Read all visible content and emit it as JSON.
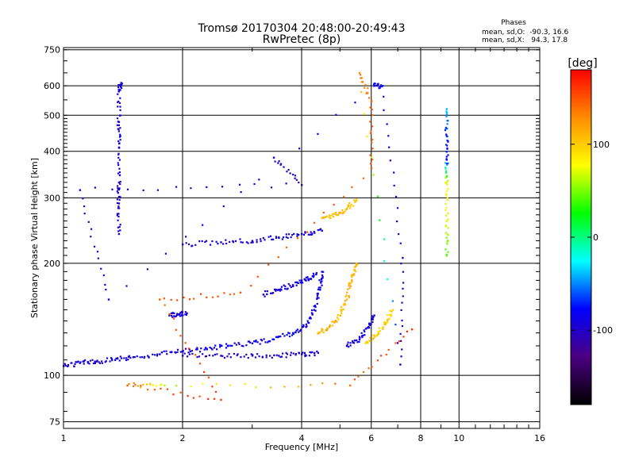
{
  "chart_data": {
    "type": "scatter",
    "title": "Tromsø 20170304 20:48:00-20:49:43",
    "subtitle": "RwPretec (8p)",
    "xlabel": "Frequency [MHz]",
    "ylabel": "Stationary phase Virtual Height [km]",
    "x_scale": "log",
    "y_scale": "log",
    "xlim": [
      1,
      16
    ],
    "ylim": [
      72,
      760
    ],
    "x_ticks": [
      1,
      2,
      4,
      6,
      8,
      10,
      16
    ],
    "x_tick_labels": [
      "1",
      "2",
      "4",
      "6",
      "8",
      "10",
      "16"
    ],
    "y_ticks": [
      75,
      100,
      200,
      300,
      400,
      500,
      600,
      750
    ],
    "y_tick_labels": [
      "75",
      "100",
      "200",
      "300",
      "400",
      "500",
      "600",
      "750"
    ],
    "grid": true,
    "legend_position": "top-right",
    "phase_header": "Phases",
    "phase_stats": [
      "mean, sd,O:  -90.3, 16.6",
      "mean, sd,X:   94.3, 17.8"
    ],
    "colorbar": {
      "label": "[deg]",
      "range": [
        -180,
        180
      ],
      "ticks": [
        -100,
        0,
        100
      ],
      "tick_labels": [
        "-100",
        "0",
        "100"
      ],
      "colormap": "rainbow (black → purple → blue → cyan → green → yellow → orange → red)",
      "colors": [
        "#000000",
        "#4b0082",
        "#0000ff",
        "#00ffff",
        "#00ff00",
        "#ffff00",
        "#ff8c00",
        "#ff0000"
      ]
    },
    "series": [
      {
        "points": [
          {
            "x": 1.0,
            "y": 106,
            "c": -95
          },
          {
            "x": 1.1,
            "y": 108,
            "c": -92
          },
          {
            "x": 1.2,
            "y": 109,
            "c": -95
          },
          {
            "x": 1.35,
            "y": 110,
            "c": -90
          },
          {
            "x": 1.5,
            "y": 112,
            "c": -88
          },
          {
            "x": 1.75,
            "y": 114,
            "c": -92
          },
          {
            "x": 2.0,
            "y": 116,
            "c": -90
          },
          {
            "x": 2.3,
            "y": 118,
            "c": -88
          },
          {
            "x": 2.6,
            "y": 120,
            "c": -86
          },
          {
            "x": 3.0,
            "y": 122,
            "c": -90
          },
          {
            "x": 3.4,
            "y": 125,
            "c": -85
          },
          {
            "x": 3.8,
            "y": 130,
            "c": -80
          },
          {
            "x": 4.1,
            "y": 135,
            "c": -85
          },
          {
            "x": 4.3,
            "y": 150,
            "c": -88
          },
          {
            "x": 4.45,
            "y": 170,
            "c": -85
          },
          {
            "x": 4.5,
            "y": 190,
            "c": -90
          }
        ]
      },
      {
        "points": [
          {
            "x": 2.0,
            "y": 113,
            "c": -100
          },
          {
            "x": 2.5,
            "y": 113,
            "c": -100
          },
          {
            "x": 3.0,
            "y": 113,
            "c": -100
          },
          {
            "x": 3.5,
            "y": 113,
            "c": -98
          },
          {
            "x": 4.0,
            "y": 114,
            "c": -95
          },
          {
            "x": 4.4,
            "y": 115,
            "c": -95
          }
        ]
      },
      {
        "points": [
          {
            "x": 1.85,
            "y": 145,
            "c": -95
          },
          {
            "x": 1.95,
            "y": 146,
            "c": -92
          },
          {
            "x": 2.05,
            "y": 147,
            "c": -95
          }
        ]
      },
      {
        "points": [
          {
            "x": 3.2,
            "y": 165,
            "c": -90
          },
          {
            "x": 3.5,
            "y": 170,
            "c": -92
          },
          {
            "x": 3.8,
            "y": 175,
            "c": -90
          },
          {
            "x": 4.1,
            "y": 180,
            "c": -88
          },
          {
            "x": 4.35,
            "y": 187,
            "c": -85
          }
        ]
      },
      {
        "points": [
          {
            "x": 4.4,
            "y": 130,
            "c": 110
          },
          {
            "x": 4.7,
            "y": 135,
            "c": 115
          },
          {
            "x": 5.0,
            "y": 145,
            "c": 105
          },
          {
            "x": 5.2,
            "y": 160,
            "c": 110
          },
          {
            "x": 5.35,
            "y": 180,
            "c": 112
          },
          {
            "x": 5.5,
            "y": 200,
            "c": 108
          }
        ]
      },
      {
        "points": [
          {
            "x": 5.2,
            "y": 120,
            "c": -90
          },
          {
            "x": 5.6,
            "y": 125,
            "c": -92
          },
          {
            "x": 5.9,
            "y": 135,
            "c": -88
          },
          {
            "x": 6.1,
            "y": 145,
            "c": -90
          }
        ]
      },
      {
        "points": [
          {
            "x": 5.8,
            "y": 122,
            "c": 95
          },
          {
            "x": 6.2,
            "y": 128,
            "c": 100
          },
          {
            "x": 6.5,
            "y": 138,
            "c": 98
          },
          {
            "x": 6.8,
            "y": 150,
            "c": 95
          }
        ]
      },
      {
        "points": [
          {
            "x": 2.0,
            "y": 225,
            "c": -95
          },
          {
            "x": 2.5,
            "y": 228,
            "c": -92
          },
          {
            "x": 3.0,
            "y": 230,
            "c": -94
          },
          {
            "x": 3.5,
            "y": 235,
            "c": -90
          },
          {
            "x": 4.0,
            "y": 240,
            "c": -92
          },
          {
            "x": 4.5,
            "y": 245,
            "c": -90
          }
        ]
      },
      {
        "points": [
          {
            "x": 4.5,
            "y": 265,
            "c": 105
          },
          {
            "x": 4.9,
            "y": 270,
            "c": 110
          },
          {
            "x": 5.2,
            "y": 280,
            "c": 108
          },
          {
            "x": 5.5,
            "y": 295,
            "c": 105
          }
        ]
      },
      {
        "points": [
          {
            "x": 1.38,
            "y": 240,
            "c": -95
          },
          {
            "x": 1.38,
            "y": 290,
            "c": -92
          },
          {
            "x": 1.38,
            "y": 330,
            "c": -95
          },
          {
            "x": 1.38,
            "y": 410,
            "c": -90
          },
          {
            "x": 1.38,
            "y": 480,
            "c": -92
          },
          {
            "x": 1.38,
            "y": 580,
            "c": -95
          },
          {
            "x": 1.4,
            "y": 610,
            "c": -93
          }
        ]
      },
      {
        "points": [
          {
            "x": 9.3,
            "y": 210,
            "c": 40
          },
          {
            "x": 9.3,
            "y": 260,
            "c": 70
          },
          {
            "x": 9.3,
            "y": 330,
            "c": 90
          },
          {
            "x": 9.3,
            "y": 380,
            "c": -80
          },
          {
            "x": 9.3,
            "y": 440,
            "c": -70
          },
          {
            "x": 9.3,
            "y": 520,
            "c": -40
          }
        ]
      },
      {
        "points": [
          {
            "x": 3.4,
            "y": 385,
            "c": -95
          },
          {
            "x": 4.0,
            "y": 325,
            "c": -100
          },
          {
            "x": 1.1,
            "y": 315,
            "c": -95
          },
          {
            "x": 1.3,
            "y": 160,
            "c": -95
          },
          {
            "x": 6.1,
            "y": 600,
            "c": -90
          },
          {
            "x": 6.4,
            "y": 600,
            "c": -80
          },
          {
            "x": 7.2,
            "y": 207,
            "c": -95
          },
          {
            "x": 7.1,
            "y": 107,
            "c": -95
          },
          {
            "x": 5.6,
            "y": 650,
            "c": 130
          },
          {
            "x": 6.0,
            "y": 545,
            "c": 140
          },
          {
            "x": 6.0,
            "y": 360,
            "c": 145
          },
          {
            "x": 2.8,
            "y": 167,
            "c": 150
          },
          {
            "x": 1.75,
            "y": 160,
            "c": 150
          },
          {
            "x": 2.5,
            "y": 86,
            "c": 160
          },
          {
            "x": 1.45,
            "y": 94,
            "c": 145
          },
          {
            "x": 1.8,
            "y": 94,
            "c": 60
          },
          {
            "x": 5.3,
            "y": 94,
            "c": 140
          },
          {
            "x": 7.6,
            "y": 133,
            "c": 160
          }
        ]
      }
    ]
  }
}
